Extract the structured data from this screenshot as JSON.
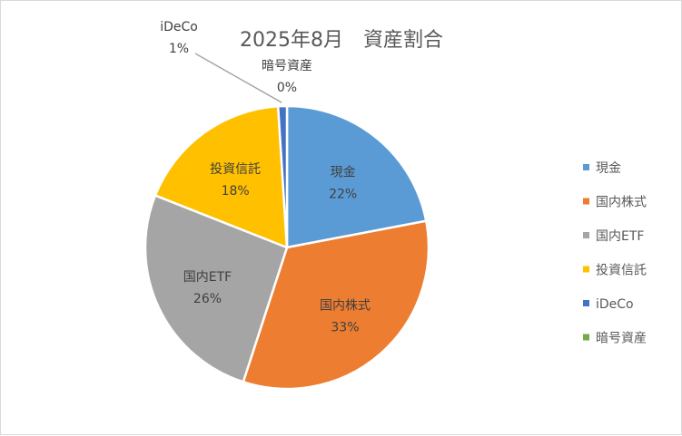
{
  "chart_data": {
    "type": "pie",
    "title": "2025年8月　資産割合",
    "legend_position": "right",
    "slices": [
      {
        "name": "現金",
        "value": 22,
        "label": "22%",
        "color": "#5B9BD5"
      },
      {
        "name": "国内株式",
        "value": 33,
        "label": "33%",
        "color": "#ED7D31"
      },
      {
        "name": "国内ETF",
        "value": 26,
        "label": "26%",
        "color": "#A5A5A5"
      },
      {
        "name": "投資信託",
        "value": 18,
        "label": "18%",
        "color": "#FFC000"
      },
      {
        "name": "iDeCo",
        "value": 1,
        "label": "1%",
        "color": "#4472C4"
      },
      {
        "name": "暗号資産",
        "value": 0,
        "label": "0%",
        "color": "#70AD47"
      }
    ]
  }
}
